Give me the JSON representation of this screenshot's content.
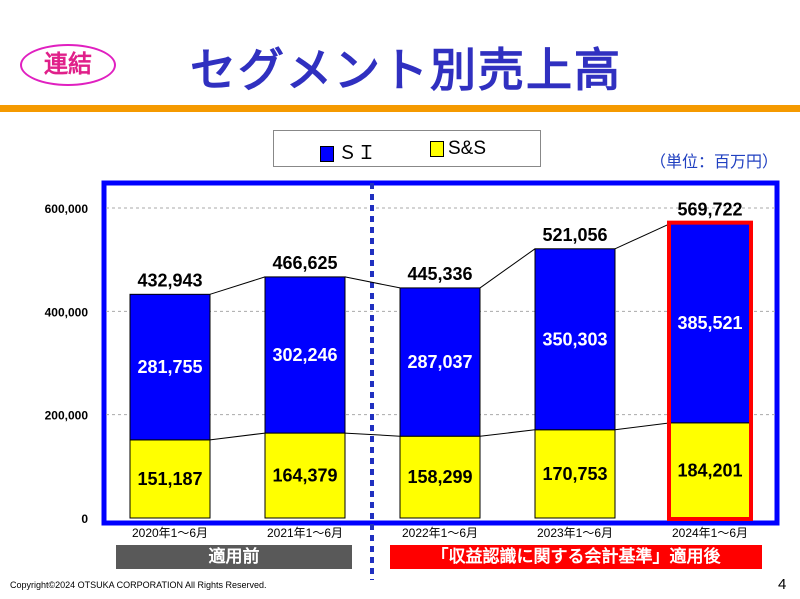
{
  "header": {
    "badge": "連結",
    "title": "セグメント別売上高"
  },
  "unit": "（単位：百万円）",
  "labels": {
    "before": "適用前",
    "after": "「収益認識に関する会計基準」適用後"
  },
  "footer": {
    "copyright": "Copyright©2024 OTSUKA CORPORATION All Rights Reserved.",
    "page": "4"
  },
  "chart_data": {
    "type": "bar",
    "stacked": true,
    "categories": [
      "2020年1～6月",
      "2021年1～6月",
      "2022年1～6月",
      "2023年1～6月",
      "2024年1～6月"
    ],
    "series": [
      {
        "name": "S&S",
        "color": "#ffff00",
        "values": [
          151187,
          164379,
          158299,
          170753,
          184201
        ]
      },
      {
        "name": "ＳＩ",
        "color": "#0000ff",
        "values": [
          281755,
          302246,
          287037,
          350303,
          385521
        ]
      }
    ],
    "totals": [
      432943,
      466625,
      445336,
      521056,
      569722
    ],
    "ylim": [
      0,
      600000
    ],
    "yticks": [
      0,
      200000,
      400000,
      600000
    ],
    "grid": true,
    "legend": "top",
    "highlight_color": "#ff0000",
    "frame_color": "#0000ff"
  }
}
